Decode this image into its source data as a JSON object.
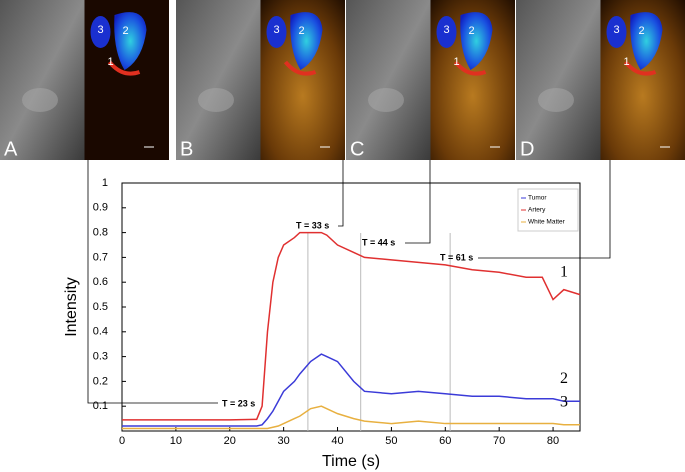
{
  "panels": [
    {
      "label": "A",
      "regions": [
        "3",
        "2",
        "1"
      ]
    },
    {
      "label": "B",
      "regions": [
        "3",
        "2"
      ]
    },
    {
      "label": "C",
      "regions": [
        "3",
        "2",
        "1"
      ]
    },
    {
      "label": "D",
      "regions": [
        "3",
        "2",
        "1"
      ]
    }
  ],
  "chart_data": {
    "type": "line",
    "x_label": "Time (s)",
    "y_label": "Intensity",
    "x": [
      0,
      5,
      10,
      15,
      20,
      25,
      26,
      27,
      28,
      29,
      30,
      32,
      33,
      35,
      37,
      38,
      40,
      43,
      45,
      50,
      55,
      60,
      65,
      70,
      75,
      78,
      80,
      82,
      85
    ],
    "series": [
      {
        "name": "Tumor",
        "color": "#3b3bd8",
        "curve_label": "2",
        "values": [
          0.02,
          0.02,
          0.02,
          0.02,
          0.02,
          0.02,
          0.025,
          0.05,
          0.08,
          0.12,
          0.16,
          0.2,
          0.23,
          0.28,
          0.31,
          0.3,
          0.28,
          0.2,
          0.16,
          0.15,
          0.16,
          0.15,
          0.14,
          0.14,
          0.13,
          0.13,
          0.13,
          0.12,
          0.12
        ]
      },
      {
        "name": "Artery",
        "color": "#e03030",
        "curve_label": "1",
        "values": [
          0.045,
          0.045,
          0.045,
          0.045,
          0.045,
          0.047,
          0.1,
          0.4,
          0.6,
          0.7,
          0.75,
          0.78,
          0.8,
          0.8,
          0.8,
          0.79,
          0.75,
          0.72,
          0.7,
          0.69,
          0.68,
          0.67,
          0.65,
          0.64,
          0.62,
          0.62,
          0.53,
          0.57,
          0.55
        ]
      },
      {
        "name": "White Matter",
        "color": "#e8b040",
        "curve_label": "3",
        "values": [
          0.01,
          0.01,
          0.01,
          0.01,
          0.01,
          0.01,
          0.01,
          0.01,
          0.015,
          0.02,
          0.03,
          0.05,
          0.06,
          0.09,
          0.1,
          0.09,
          0.07,
          0.05,
          0.04,
          0.03,
          0.04,
          0.03,
          0.03,
          0.03,
          0.03,
          0.03,
          0.03,
          0.025,
          0.025
        ]
      }
    ],
    "annotations": [
      "T = 23 s",
      "T = 33 s",
      "T = 44 s",
      "T = 61 s"
    ],
    "xlim": [
      0,
      85
    ],
    "xticks": [
      0,
      10,
      20,
      30,
      40,
      50,
      60,
      70,
      80
    ],
    "ylim": [
      0,
      1
    ],
    "yticks": [
      0.1,
      0.2,
      0.3,
      0.4,
      0.5,
      0.6,
      0.7,
      0.8,
      0.9,
      1
    ],
    "legend": "top-right"
  }
}
